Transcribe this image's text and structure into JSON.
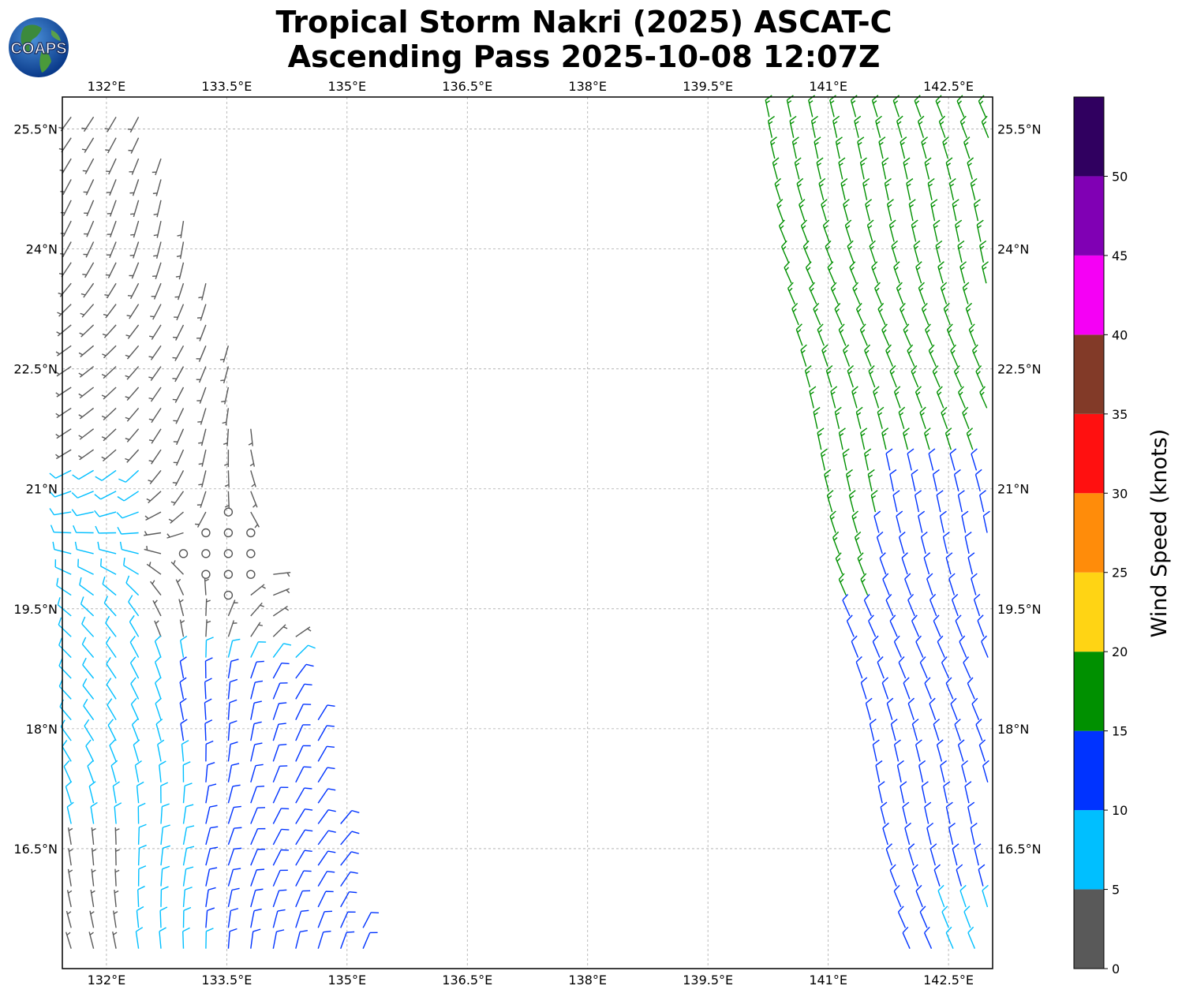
{
  "title": {
    "line1": "Tropical Storm Nakri (2025) ASCAT-C",
    "line2": "Ascending Pass 2025-10-08 12:07Z"
  },
  "logo": {
    "text": "COAPS",
    "icon": "globe-logo-icon"
  },
  "map": {
    "lon_range": [
      131.45,
      143.05
    ],
    "lat_range": [
      15.0,
      25.9
    ],
    "lon_ticks": [
      132.0,
      133.5,
      135.0,
      136.5,
      138.0,
      139.5,
      141.0,
      142.5
    ],
    "lon_tick_labels": [
      "132°E",
      "133.5°E",
      "135°E",
      "136.5°E",
      "138°E",
      "139.5°E",
      "141°E",
      "142.5°E"
    ],
    "lat_ticks": [
      16.5,
      18.0,
      19.5,
      21.0,
      22.5,
      24.0,
      25.5
    ],
    "lat_tick_labels": [
      "16.5°N",
      "18°N",
      "19.5°N",
      "21°N",
      "22.5°N",
      "24°N",
      "25.5°N"
    ],
    "gridlines": true,
    "gridline_style": "dashed",
    "gridline_color": "#aaaaaa"
  },
  "colorbar": {
    "label": "Wind Speed (knots)",
    "tick_values": [
      0,
      5,
      10,
      15,
      20,
      25,
      30,
      35,
      40,
      45,
      50
    ],
    "tick_labels": [
      "0",
      "5",
      "10",
      "15",
      "20",
      "25",
      "30",
      "35",
      "40",
      "45",
      "50"
    ],
    "max": 55,
    "bins": [
      {
        "from": 0,
        "to": 5,
        "color": "#595959"
      },
      {
        "from": 5,
        "to": 10,
        "color": "#00bfff"
      },
      {
        "from": 10,
        "to": 15,
        "color": "#0033ff"
      },
      {
        "from": 15,
        "to": 20,
        "color": "#009000"
      },
      {
        "from": 20,
        "to": 25,
        "color": "#ffd414"
      },
      {
        "from": 25,
        "to": 30,
        "color": "#ff8c0a"
      },
      {
        "from": 30,
        "to": 35,
        "color": "#ff1010"
      },
      {
        "from": 35,
        "to": 40,
        "color": "#823a28"
      },
      {
        "from": 40,
        "to": 45,
        "color": "#f500f5"
      },
      {
        "from": 45,
        "to": 50,
        "color": "#8000b4"
      },
      {
        "from": 50,
        "to": 55,
        "color": "#300060"
      }
    ]
  },
  "swaths": [
    {
      "name": "west",
      "rows": [
        {
          "lat": 25.75,
          "lon_min": 131.5,
          "lon_max": 132.5
        },
        {
          "lat": 24.5,
          "lon_min": 131.5,
          "lon_max": 132.95
        },
        {
          "lat": 23.0,
          "lon_min": 131.5,
          "lon_max": 133.5
        },
        {
          "lat": 21.5,
          "lon_min": 131.5,
          "lon_max": 133.9
        },
        {
          "lat": 20.0,
          "lon_min": 131.5,
          "lon_max": 134.1
        },
        {
          "lat": 18.0,
          "lon_min": 131.5,
          "lon_max": 134.75
        },
        {
          "lat": 16.5,
          "lon_min": 131.5,
          "lon_max": 135.0
        },
        {
          "lat": 15.1,
          "lon_min": 131.5,
          "lon_max": 135.3
        }
      ],
      "calm_center": {
        "lat": 20.2,
        "lon": 133.45
      }
    },
    {
      "name": "east",
      "rows": [
        {
          "lat": 25.75,
          "lon_min": 140.2,
          "lon_max": 143.0
        },
        {
          "lat": 23.5,
          "lon_min": 140.5,
          "lon_max": 143.0
        },
        {
          "lat": 21.0,
          "lon_min": 140.95,
          "lon_max": 143.0
        },
        {
          "lat": 19.5,
          "lon_min": 141.2,
          "lon_max": 143.0
        },
        {
          "lat": 18.0,
          "lon_min": 141.5,
          "lon_max": 143.0
        },
        {
          "lat": 16.5,
          "lon_min": 141.7,
          "lon_max": 143.0
        },
        {
          "lat": 15.1,
          "lon_min": 142.0,
          "lon_max": 143.0
        }
      ]
    }
  ]
}
